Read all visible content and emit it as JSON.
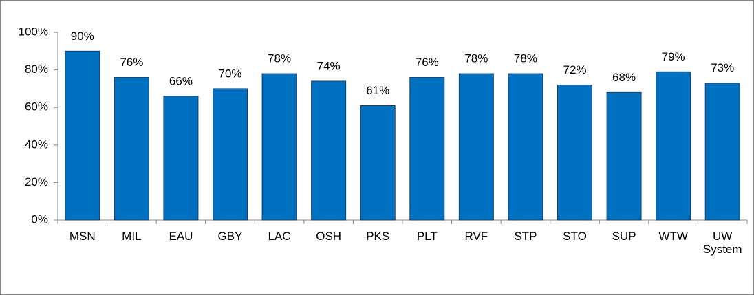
{
  "chart_data": {
    "type": "bar",
    "categories": [
      "MSN",
      "MIL",
      "EAU",
      "GBY",
      "LAC",
      "OSH",
      "PKS",
      "PLT",
      "RVF",
      "STP",
      "STO",
      "SUP",
      "WTW",
      "UW System"
    ],
    "values": [
      90,
      76,
      66,
      70,
      78,
      74,
      61,
      76,
      78,
      78,
      72,
      68,
      79,
      73
    ],
    "value_labels": [
      "90%",
      "76%",
      "66%",
      "70%",
      "78%",
      "74%",
      "61%",
      "76%",
      "78%",
      "78%",
      "72%",
      "68%",
      "79%",
      "73%"
    ],
    "color": "#0070c0",
    "ylim": [
      0,
      100
    ],
    "yticks": [
      {
        "value": 0,
        "label": "0%"
      },
      {
        "value": 20,
        "label": "20%"
      },
      {
        "value": 40,
        "label": "40%"
      },
      {
        "value": 60,
        "label": "60%"
      },
      {
        "value": 80,
        "label": "80%"
      },
      {
        "value": 100,
        "label": "100%"
      }
    ],
    "grid": false
  }
}
